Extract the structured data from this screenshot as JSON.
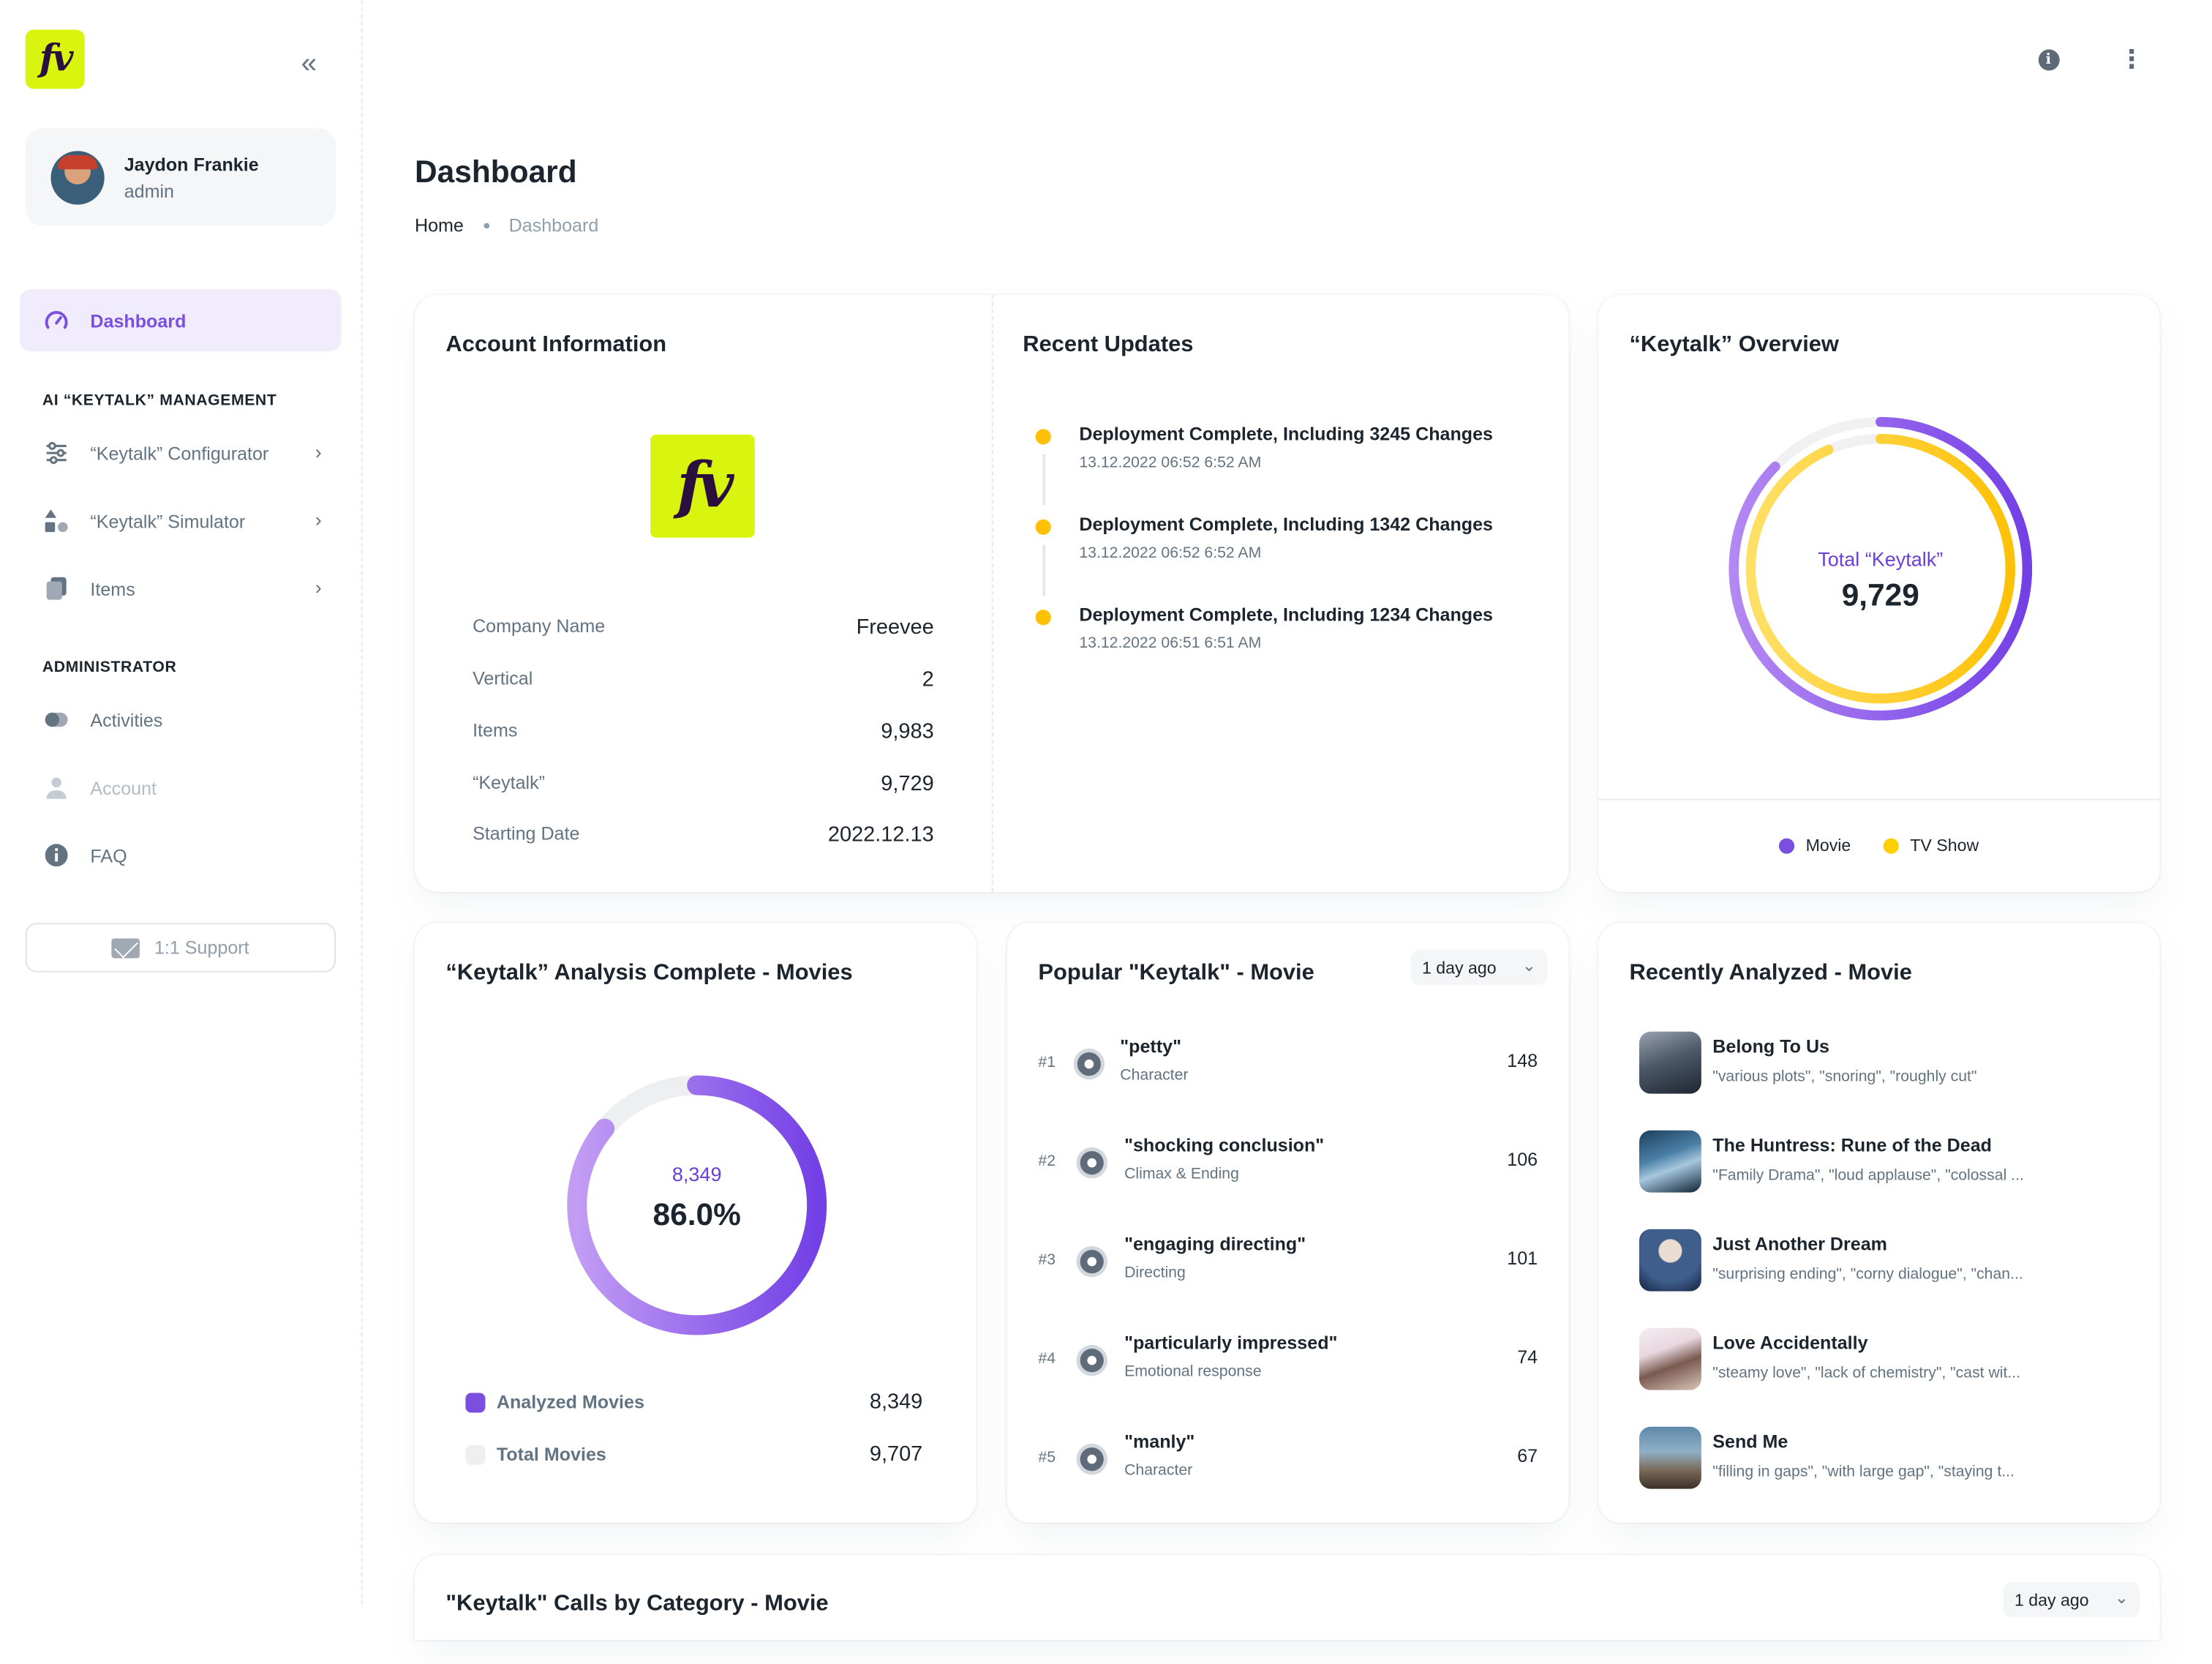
{
  "app": {
    "logo_text": "fv"
  },
  "user": {
    "name": "Jaydon Frankie",
    "role": "admin"
  },
  "nav": {
    "dashboard": "Dashboard",
    "section_ai": "AI “KEYTALK” MANAGEMENT",
    "configurator": "“Keytalk” Configurator",
    "simulator": "“Keytalk” Simulator",
    "items": "Items",
    "section_admin": "ADMINISTRATOR",
    "activities": "Activities",
    "account": "Account",
    "faq": "FAQ",
    "support": "1:1 Support"
  },
  "page": {
    "title": "Dashboard",
    "breadcrumb_home": "Home",
    "breadcrumb_current": "Dashboard"
  },
  "account_info": {
    "title": "Account Information",
    "logo_text": "fv",
    "rows": [
      {
        "label": "Company Name",
        "value": "Freevee"
      },
      {
        "label": "Vertical",
        "value": "2"
      },
      {
        "label": "Items",
        "value": "9,983"
      },
      {
        "label": "“Keytalk”",
        "value": "9,729"
      },
      {
        "label": "Starting Date",
        "value": "2022.12.13"
      }
    ]
  },
  "recent_updates": {
    "title": "Recent Updates",
    "items": [
      {
        "title": "Deployment Complete, Including 3245 Changes",
        "time": "13.12.2022 06:52 6:52 AM"
      },
      {
        "title": "Deployment Complete, Including 1342 Changes",
        "time": "13.12.2022 06:52 6:52 AM"
      },
      {
        "title": "Deployment Complete, Including 1234 Changes",
        "time": "13.12.2022 06:51 6:51 AM"
      }
    ],
    "dot_color": "#ffc107"
  },
  "overview": {
    "title": "“Keytalk” Overview",
    "center_label": "Total “Keytalk”",
    "center_value": "9,729",
    "legend": [
      {
        "label": "Movie",
        "color": "#7a4fe0"
      },
      {
        "label": "TV Show",
        "color": "#ffd000"
      }
    ]
  },
  "analysis": {
    "title": "“Keytalk” Analysis Complete - Movies",
    "center_value": "8,349",
    "center_percent": "86.0%",
    "percent": 86.0,
    "rows": [
      {
        "label": "Analyzed Movies",
        "value": "8,349",
        "color": "#7a4fe0"
      },
      {
        "label": "Total Movies",
        "value": "9,707",
        "color": "#eeeff1"
      }
    ]
  },
  "popular": {
    "title": "Popular \"Keytalk\" - Movie",
    "filter": "1 day ago",
    "items": [
      {
        "rank": "#1",
        "name": "\"petty\"",
        "category": "Character",
        "count": "148"
      },
      {
        "rank": "#2",
        "name": "\"shocking conclusion\"",
        "category": "Climax & Ending",
        "count": "106"
      },
      {
        "rank": "#3",
        "name": "\"engaging directing\"",
        "category": "Directing",
        "count": "101"
      },
      {
        "rank": "#4",
        "name": "\"particularly impressed\"",
        "category": "Emotional response",
        "count": "74"
      },
      {
        "rank": "#5",
        "name": "\"manly\"",
        "category": "Character",
        "count": "67"
      }
    ]
  },
  "recently_analyzed": {
    "title": "Recently Analyzed - Movie",
    "items": [
      {
        "title": "Belong To Us",
        "tags": "\"various plots\", \"snoring\", \"roughly cut\""
      },
      {
        "title": "The Huntress: Rune of the Dead",
        "tags": "\"Family Drama\", \"loud applause\", \"colossal ..."
      },
      {
        "title": "Just Another Dream",
        "tags": "\"surprising ending\", \"corny dialogue\", \"chan..."
      },
      {
        "title": "Love Accidentally",
        "tags": "\"steamy love\", \"lack of chemistry\", \"cast wit..."
      },
      {
        "title": "Send Me",
        "tags": "\"filling in gaps\", \"with large gap\", \"staying t..."
      }
    ]
  },
  "calls": {
    "title": "\"Keytalk\" Calls by Category - Movie",
    "filter": "1 day ago"
  },
  "colors": {
    "accent": "#7a4fe0",
    "brand": "#d9f50f",
    "yellow": "#ffc107"
  }
}
